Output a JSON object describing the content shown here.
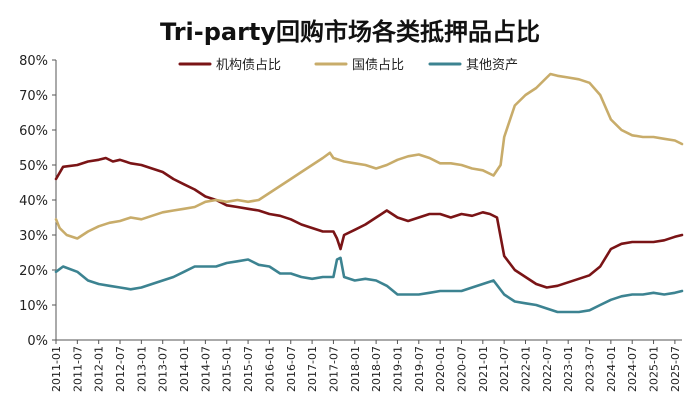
{
  "chart_data": {
    "type": "line",
    "title": "Tri-party回购市场各类抵押品占比",
    "xlabel": "",
    "ylabel": "",
    "ylim": [
      0,
      80
    ],
    "y_ticks": [
      "0%",
      "10%",
      "20%",
      "30%",
      "40%",
      "50%",
      "60%",
      "70%",
      "80%"
    ],
    "x_ticks": [
      "2011-01",
      "2011-07",
      "2012-01",
      "2012-07",
      "2013-01",
      "2013-07",
      "2014-01",
      "2014-07",
      "2015-01",
      "2015-07",
      "2016-01",
      "2016-07",
      "2017-01",
      "2017-07",
      "2018-01",
      "2018-07",
      "2019-01",
      "2019-07",
      "2020-01",
      "2020-07",
      "2021-01",
      "2021-07",
      "2022-01",
      "2022-07",
      "2023-01",
      "2023-07",
      "2024-01",
      "2024-07",
      "2025-01",
      "2025-07"
    ],
    "legend_position": "top-center",
    "grid": false,
    "series": [
      {
        "name": "机构债占比",
        "color": "#7a1416",
        "points": [
          [
            "2011-01",
            46
          ],
          [
            "2011-03",
            49.5
          ],
          [
            "2011-07",
            50
          ],
          [
            "2011-10",
            51
          ],
          [
            "2012-01",
            51.5
          ],
          [
            "2012-03",
            52
          ],
          [
            "2012-05",
            51
          ],
          [
            "2012-07",
            51.5
          ],
          [
            "2012-10",
            50.5
          ],
          [
            "2013-01",
            50
          ],
          [
            "2013-04",
            49
          ],
          [
            "2013-07",
            48
          ],
          [
            "2013-10",
            46
          ],
          [
            "2014-01",
            44.5
          ],
          [
            "2014-04",
            43
          ],
          [
            "2014-07",
            41
          ],
          [
            "2014-10",
            40
          ],
          [
            "2015-01",
            38.5
          ],
          [
            "2015-04",
            38
          ],
          [
            "2015-07",
            37.5
          ],
          [
            "2015-10",
            37
          ],
          [
            "2016-01",
            36
          ],
          [
            "2016-04",
            35.5
          ],
          [
            "2016-07",
            34.5
          ],
          [
            "2016-10",
            33
          ],
          [
            "2017-01",
            32
          ],
          [
            "2017-04",
            31
          ],
          [
            "2017-07",
            31
          ],
          [
            "2017-08",
            29
          ],
          [
            "2017-09",
            26
          ],
          [
            "2017-10",
            30
          ],
          [
            "2018-01",
            31.5
          ],
          [
            "2018-04",
            33
          ],
          [
            "2018-07",
            35
          ],
          [
            "2018-10",
            37
          ],
          [
            "2019-01",
            35
          ],
          [
            "2019-04",
            34
          ],
          [
            "2019-07",
            35
          ],
          [
            "2019-10",
            36
          ],
          [
            "2020-01",
            36
          ],
          [
            "2020-04",
            35
          ],
          [
            "2020-07",
            36
          ],
          [
            "2020-10",
            35.5
          ],
          [
            "2021-01",
            36.5
          ],
          [
            "2021-03",
            36
          ],
          [
            "2021-05",
            35
          ],
          [
            "2021-07",
            24
          ],
          [
            "2021-10",
            20
          ],
          [
            "2022-01",
            18
          ],
          [
            "2022-04",
            16
          ],
          [
            "2022-07",
            15
          ],
          [
            "2022-10",
            15.5
          ],
          [
            "2023-01",
            16.5
          ],
          [
            "2023-04",
            17.5
          ],
          [
            "2023-07",
            18.5
          ],
          [
            "2023-10",
            21
          ],
          [
            "2024-01",
            26
          ],
          [
            "2024-04",
            27.5
          ],
          [
            "2024-07",
            28
          ],
          [
            "2024-10",
            28
          ],
          [
            "2025-01",
            28
          ],
          [
            "2025-04",
            28.5
          ],
          [
            "2025-07",
            29.5
          ],
          [
            "2025-09",
            30
          ]
        ]
      },
      {
        "name": "国债占比",
        "color": "#c8ac6a",
        "points": [
          [
            "2011-01",
            34.5
          ],
          [
            "2011-02",
            32
          ],
          [
            "2011-04",
            30
          ],
          [
            "2011-07",
            29
          ],
          [
            "2011-10",
            31
          ],
          [
            "2012-01",
            32.5
          ],
          [
            "2012-04",
            33.5
          ],
          [
            "2012-07",
            34
          ],
          [
            "2012-10",
            35
          ],
          [
            "2013-01",
            34.5
          ],
          [
            "2013-04",
            35.5
          ],
          [
            "2013-07",
            36.5
          ],
          [
            "2013-10",
            37
          ],
          [
            "2014-01",
            37.5
          ],
          [
            "2014-04",
            38
          ],
          [
            "2014-07",
            39.5
          ],
          [
            "2014-10",
            40
          ],
          [
            "2015-01",
            39.5
          ],
          [
            "2015-04",
            40
          ],
          [
            "2015-07",
            39.5
          ],
          [
            "2015-10",
            40
          ],
          [
            "2016-01",
            42
          ],
          [
            "2016-04",
            44
          ],
          [
            "2016-07",
            46
          ],
          [
            "2016-10",
            48
          ],
          [
            "2017-01",
            50
          ],
          [
            "2017-04",
            52
          ],
          [
            "2017-06",
            53.5
          ],
          [
            "2017-07",
            52
          ],
          [
            "2017-10",
            51
          ],
          [
            "2018-01",
            50.5
          ],
          [
            "2018-04",
            50
          ],
          [
            "2018-07",
            49
          ],
          [
            "2018-10",
            50
          ],
          [
            "2019-01",
            51.5
          ],
          [
            "2019-04",
            52.5
          ],
          [
            "2019-07",
            53
          ],
          [
            "2019-10",
            52
          ],
          [
            "2020-01",
            50.5
          ],
          [
            "2020-04",
            50.5
          ],
          [
            "2020-07",
            50
          ],
          [
            "2020-10",
            49
          ],
          [
            "2021-01",
            48.5
          ],
          [
            "2021-04",
            47
          ],
          [
            "2021-06",
            50
          ],
          [
            "2021-07",
            58
          ],
          [
            "2021-10",
            67
          ],
          [
            "2022-01",
            70
          ],
          [
            "2022-04",
            72
          ],
          [
            "2022-07",
            75
          ],
          [
            "2022-08",
            76
          ],
          [
            "2022-10",
            75.5
          ],
          [
            "2023-01",
            75
          ],
          [
            "2023-04",
            74.5
          ],
          [
            "2023-07",
            73.5
          ],
          [
            "2023-10",
            70
          ],
          [
            "2024-01",
            63
          ],
          [
            "2024-04",
            60
          ],
          [
            "2024-07",
            58.5
          ],
          [
            "2024-10",
            58
          ],
          [
            "2025-01",
            58
          ],
          [
            "2025-04",
            57.5
          ],
          [
            "2025-07",
            57
          ],
          [
            "2025-09",
            56
          ]
        ]
      },
      {
        "name": "其他资产",
        "color": "#3c8391",
        "points": [
          [
            "2011-01",
            19.5
          ],
          [
            "2011-03",
            21
          ],
          [
            "2011-07",
            19.5
          ],
          [
            "2011-10",
            17
          ],
          [
            "2012-01",
            16
          ],
          [
            "2012-04",
            15.5
          ],
          [
            "2012-07",
            15
          ],
          [
            "2012-10",
            14.5
          ],
          [
            "2013-01",
            15
          ],
          [
            "2013-04",
            16
          ],
          [
            "2013-07",
            17
          ],
          [
            "2013-10",
            18
          ],
          [
            "2014-01",
            19.5
          ],
          [
            "2014-04",
            21
          ],
          [
            "2014-07",
            21
          ],
          [
            "2014-10",
            21
          ],
          [
            "2015-01",
            22
          ],
          [
            "2015-04",
            22.5
          ],
          [
            "2015-07",
            23
          ],
          [
            "2015-10",
            21.5
          ],
          [
            "2016-01",
            21
          ],
          [
            "2016-04",
            19
          ],
          [
            "2016-07",
            19
          ],
          [
            "2016-10",
            18
          ],
          [
            "2017-01",
            17.5
          ],
          [
            "2017-04",
            18
          ],
          [
            "2017-07",
            18
          ],
          [
            "2017-08",
            23
          ],
          [
            "2017-09",
            23.5
          ],
          [
            "2017-10",
            18
          ],
          [
            "2018-01",
            17
          ],
          [
            "2018-04",
            17.5
          ],
          [
            "2018-07",
            17
          ],
          [
            "2018-10",
            15.5
          ],
          [
            "2019-01",
            13
          ],
          [
            "2019-04",
            13
          ],
          [
            "2019-07",
            13
          ],
          [
            "2019-10",
            13.5
          ],
          [
            "2020-01",
            14
          ],
          [
            "2020-04",
            14
          ],
          [
            "2020-07",
            14
          ],
          [
            "2020-10",
            15
          ],
          [
            "2021-01",
            16
          ],
          [
            "2021-04",
            17
          ],
          [
            "2021-07",
            13
          ],
          [
            "2021-10",
            11
          ],
          [
            "2022-01",
            10.5
          ],
          [
            "2022-04",
            10
          ],
          [
            "2022-07",
            9
          ],
          [
            "2022-10",
            8
          ],
          [
            "2023-01",
            8
          ],
          [
            "2023-04",
            8
          ],
          [
            "2023-07",
            8.5
          ],
          [
            "2023-10",
            10
          ],
          [
            "2024-01",
            11.5
          ],
          [
            "2024-04",
            12.5
          ],
          [
            "2024-07",
            13
          ],
          [
            "2024-10",
            13
          ],
          [
            "2025-01",
            13.5
          ],
          [
            "2025-04",
            13
          ],
          [
            "2025-07",
            13.5
          ],
          [
            "2025-09",
            14
          ]
        ]
      }
    ]
  }
}
